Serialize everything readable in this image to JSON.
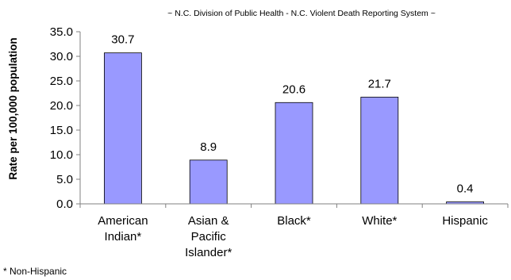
{
  "chart_data": {
    "type": "bar",
    "subtitle": "~ N.C. Division of Public Health - N.C. Violent Death Reporting System ~",
    "ylabel": "Rate per 100,000 population",
    "xlabel": "",
    "categories": [
      [
        "American",
        "Indian*"
      ],
      [
        "Asian &",
        "Pacific",
        "Islander*"
      ],
      [
        "Black*"
      ],
      [
        "White*"
      ],
      [
        "Hispanic"
      ]
    ],
    "values": [
      30.7,
      8.9,
      20.6,
      21.7,
      0.4
    ],
    "data_labels": [
      "30.7",
      "8.9",
      "20.6",
      "21.7",
      "0.4"
    ],
    "ylim": [
      0,
      35
    ],
    "yticks": [
      0,
      5,
      10,
      15,
      20,
      25,
      30,
      35
    ],
    "ytick_labels": [
      "0.0",
      "5.0",
      "10.0",
      "15.0",
      "20.0",
      "25.0",
      "30.0",
      "35.0"
    ],
    "grid": false,
    "legend": "none",
    "bar_color": "#9999ff",
    "bar_stroke": "#000000"
  },
  "footnote": "* Non-Hispanic"
}
